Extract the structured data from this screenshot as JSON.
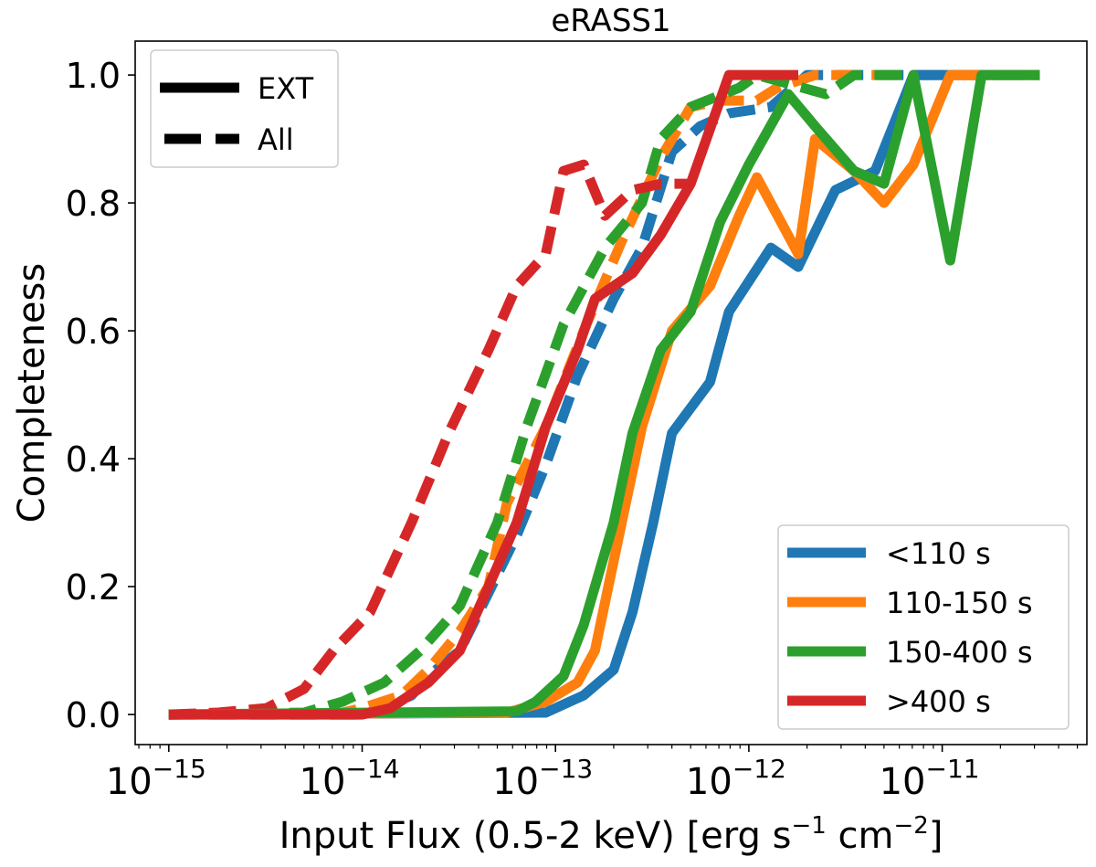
{
  "chart_data": {
    "type": "line",
    "title": "eRASS1",
    "xlabel": "Input Flux (0.5-2 keV) [erg s",
    "xlabel_parts": {
      "a": "Input Flux (0.5-2 keV) [erg s",
      "exp1": "−1",
      "b": " cm",
      "exp2": "−2",
      "c": "]"
    },
    "ylabel": "Completeness",
    "xscale": "log",
    "xlim": [
      6.7e-16,
      5.6e-11
    ],
    "ylim": [
      -0.047,
      1.053
    ],
    "xticks": [
      {
        "value": 1e-15,
        "base": "10",
        "exp": "−15"
      },
      {
        "value": 1e-14,
        "base": "10",
        "exp": "−14"
      },
      {
        "value": 1e-13,
        "base": "10",
        "exp": "−13"
      },
      {
        "value": 1e-12,
        "base": "10",
        "exp": "−12"
      },
      {
        "value": 1e-11,
        "base": "10",
        "exp": "−11"
      }
    ],
    "yticks": [
      {
        "value": 0.0,
        "label": "0.0"
      },
      {
        "value": 0.2,
        "label": "0.2"
      },
      {
        "value": 0.4,
        "label": "0.4"
      },
      {
        "value": 0.6,
        "label": "0.6"
      },
      {
        "value": 0.8,
        "label": "0.8"
      },
      {
        "value": 1.0,
        "label": "1.0"
      }
    ],
    "grid": false,
    "style_legend": {
      "placement": "upper-left",
      "entries": [
        {
          "label": "EXT",
          "style": "solid"
        },
        {
          "label": "All",
          "style": "dashed"
        }
      ]
    },
    "color_legend": {
      "placement": "lower-right",
      "entries": [
        {
          "label": "<110 s",
          "color": "#1f77b4"
        },
        {
          "label": "110-150 s",
          "color": "#ff7f0e"
        },
        {
          "label": "150-400 s",
          "color": "#2ca02c"
        },
        {
          "label": ">400 s",
          "color": "#d62728"
        }
      ]
    },
    "series": [
      {
        "group": "<110 s",
        "style": "dashed",
        "color": "#1f77b4",
        "x": [
          1e-15,
          1e-14,
          1.3e-14,
          1.8e-14,
          2.2e-14,
          3.2e-14,
          4.5e-14,
          6.3e-14,
          8.9e-14,
          1.3e-13,
          2e-13,
          2.8e-13,
          4e-13,
          5.6e-13,
          7.9e-13,
          1.3e-12,
          2e-12,
          3.2e-11
        ],
        "y": [
          0,
          0,
          0.01,
          0.03,
          0.06,
          0.1,
          0.19,
          0.28,
          0.39,
          0.53,
          0.65,
          0.73,
          0.88,
          0.92,
          0.94,
          0.95,
          1.0,
          1.0
        ]
      },
      {
        "group": "110-150 s",
        "style": "dashed",
        "color": "#ff7f0e",
        "x": [
          1e-15,
          7.9e-15,
          1e-14,
          1.6e-14,
          2.2e-14,
          3.2e-14,
          4.5e-14,
          5.6e-14,
          8.9e-14,
          1.4e-13,
          2.2e-13,
          3.5e-13,
          5e-13,
          7.1e-13,
          1.1e-12,
          1.4e-12,
          2.2e-12,
          3.2e-11
        ],
        "y": [
          0,
          0.003,
          0.01,
          0.03,
          0.07,
          0.13,
          0.2,
          0.33,
          0.45,
          0.6,
          0.74,
          0.87,
          0.95,
          0.96,
          0.96,
          0.98,
          1.0,
          1.0
        ]
      },
      {
        "group": "150-400 s",
        "style": "dashed",
        "color": "#2ca02c",
        "x": [
          1e-15,
          5e-15,
          7.9e-15,
          1.3e-14,
          2e-14,
          3.2e-14,
          5e-14,
          7.1e-14,
          1.1e-13,
          1.8e-13,
          2.8e-13,
          3.5e-13,
          5e-13,
          8.9e-13,
          1.1e-12,
          2.5e-12,
          3.5e-12,
          7.1e-12
        ],
        "y": [
          0,
          0.003,
          0.02,
          0.05,
          0.1,
          0.17,
          0.3,
          0.45,
          0.61,
          0.73,
          0.8,
          0.9,
          0.95,
          0.98,
          1.0,
          0.97,
          1.0,
          1.0
        ]
      },
      {
        "group": ">400 s",
        "style": "dashed",
        "color": "#d62728",
        "x": [
          1e-15,
          1.8e-15,
          3.2e-15,
          5e-15,
          7.1e-15,
          1.1e-14,
          1.8e-14,
          2.8e-14,
          4.5e-14,
          6.3e-14,
          8.9e-14,
          1.1e-13,
          1.4e-13,
          1.8e-13,
          2.5e-13,
          3.5e-13,
          5e-13
        ],
        "y": [
          0,
          0.003,
          0.01,
          0.04,
          0.1,
          0.16,
          0.3,
          0.44,
          0.57,
          0.67,
          0.72,
          0.85,
          0.86,
          0.78,
          0.82,
          0.83,
          0.83
        ]
      },
      {
        "group": "<110 s",
        "style": "solid",
        "color": "#1f77b4",
        "x": [
          1e-15,
          8.9e-14,
          1.4e-13,
          2e-13,
          2.5e-13,
          3.2e-13,
          4e-13,
          6.3e-13,
          7.9e-13,
          1.3e-12,
          1.8e-12,
          2.8e-12,
          4.5e-12,
          7.1e-12,
          3.2e-11
        ],
        "y": [
          0,
          0.003,
          0.03,
          0.07,
          0.16,
          0.3,
          0.44,
          0.52,
          0.63,
          0.73,
          0.7,
          0.82,
          0.85,
          1.0,
          1.0
        ]
      },
      {
        "group": "110-150 s",
        "style": "solid",
        "color": "#ff7f0e",
        "x": [
          1e-15,
          5.6e-14,
          8.9e-14,
          1.3e-13,
          1.6e-13,
          2.2e-13,
          2.8e-13,
          4e-13,
          6.3e-13,
          8.9e-13,
          1.1e-12,
          1.8e-12,
          2.2e-12,
          3.5e-12,
          5e-12,
          7.1e-12,
          1.1e-11,
          3.2e-11
        ],
        "y": [
          0,
          0.003,
          0.02,
          0.05,
          0.1,
          0.3,
          0.45,
          0.6,
          0.67,
          0.78,
          0.84,
          0.72,
          0.9,
          0.85,
          0.8,
          0.86,
          1.0,
          1.0
        ]
      },
      {
        "group": "150-400 s",
        "style": "solid",
        "color": "#2ca02c",
        "x": [
          1e-15,
          6.3e-14,
          7.9e-14,
          1.1e-13,
          1.4e-13,
          2e-13,
          2.5e-13,
          3.5e-13,
          5e-13,
          7.1e-13,
          1e-12,
          1.6e-12,
          2.2e-12,
          3.5e-12,
          5e-12,
          7.1e-12,
          1.1e-11,
          1.6e-11,
          3.2e-11
        ],
        "y": [
          0,
          0.005,
          0.02,
          0.06,
          0.14,
          0.3,
          0.44,
          0.57,
          0.63,
          0.77,
          0.86,
          0.97,
          0.92,
          0.85,
          0.83,
          1.0,
          0.71,
          1.0,
          1.0
        ]
      },
      {
        "group": ">400 s",
        "style": "solid",
        "color": "#d62728",
        "x": [
          1e-15,
          1e-14,
          1.4e-14,
          2.2e-14,
          3.2e-14,
          4.5e-14,
          6.3e-14,
          8.9e-14,
          1.3e-13,
          1.6e-13,
          2.5e-13,
          3.5e-13,
          5e-13,
          7.9e-13,
          1.8e-12
        ],
        "y": [
          0,
          0,
          0.01,
          0.05,
          0.1,
          0.2,
          0.3,
          0.45,
          0.57,
          0.65,
          0.69,
          0.75,
          0.83,
          1.0,
          1.0
        ]
      }
    ]
  }
}
